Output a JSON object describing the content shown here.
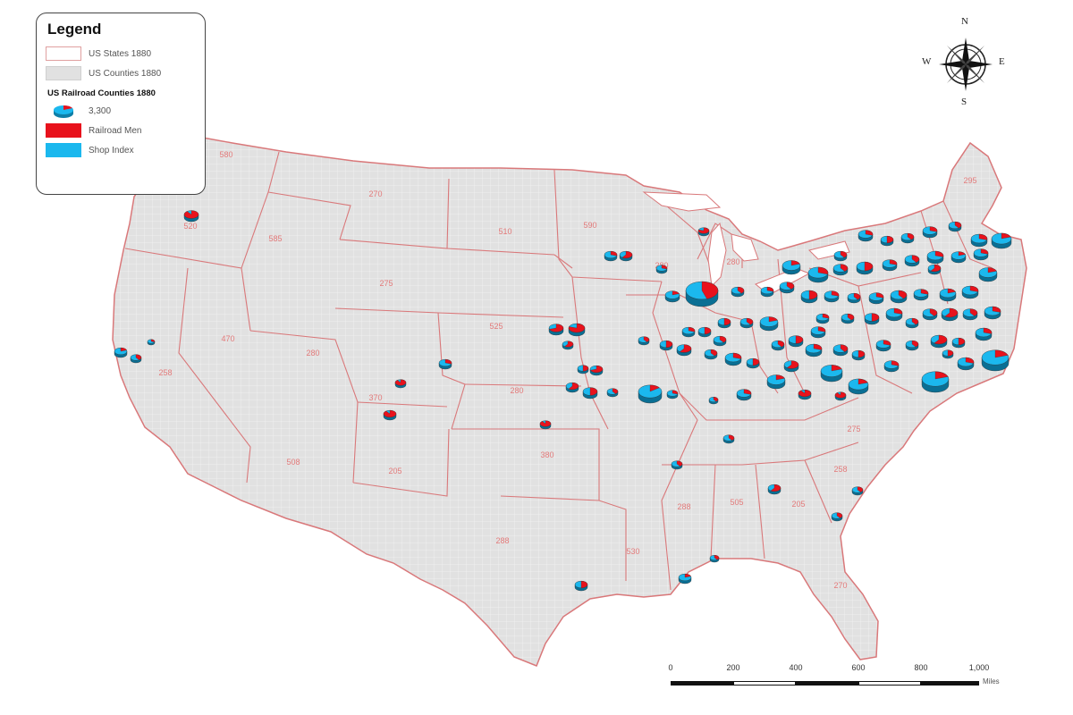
{
  "legend": {
    "title": "Legend",
    "states_label": "US States 1880",
    "counties_label": "US Counties 1880",
    "railroad_heading": "US Railroad Counties 1880",
    "size_value": "3,300",
    "men_label": "Railroad Men",
    "shop_label": "Shop Index"
  },
  "colors": {
    "railroad_men": "#e8121c",
    "shop_index": "#1bb8ee",
    "state_border": "#d9787a",
    "county_fill": "#e1e1e1",
    "county_lines": "#f3f3f3"
  },
  "compass": {
    "north": "N",
    "south": "S",
    "west": "W",
    "east": "E"
  },
  "scale_bar": {
    "ticks": [
      "0",
      "200",
      "400",
      "600",
      "800",
      "1,000"
    ],
    "units": "Miles"
  },
  "state_labels": [
    "580",
    "520",
    "585",
    "270",
    "275",
    "280",
    "470",
    "258",
    "510",
    "590",
    "525",
    "370",
    "280",
    "205",
    "508",
    "380",
    "288",
    "530",
    "288",
    "505",
    "205",
    "258",
    "275",
    "270",
    "280",
    "280",
    "295"
  ],
  "map_features": [
    "United States state boundaries",
    "county boundaries",
    "3D pie symbols of railroad counties"
  ]
}
